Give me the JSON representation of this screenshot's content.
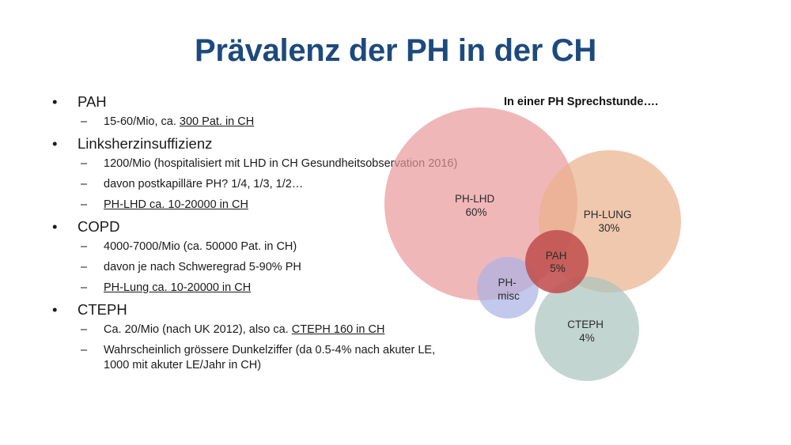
{
  "title": "Prävalenz der PH in der CH",
  "bullets": [
    {
      "label": "PAH",
      "subs": [
        {
          "pre": "15-60/Mio, ca. ",
          "link": "300 Pat. in CH",
          "post": ""
        }
      ]
    },
    {
      "label": "Linksherzinsuffizienz",
      "subs": [
        {
          "pre": "1200/Mio (hospitalisiert mit LHD in CH Gesundheitsobservation 2016)",
          "link": "",
          "post": ""
        },
        {
          "pre": "davon postkapilläre PH? 1/4, 1/3, 1/2…",
          "link": "",
          "post": ""
        },
        {
          "pre": "",
          "link": "PH-LHD ca. 10-20000 in CH",
          "post": ""
        }
      ]
    },
    {
      "label": "COPD",
      "subs": [
        {
          "pre": "4000-7000/Mio (ca. 50000 Pat. in CH)",
          "link": "",
          "post": ""
        },
        {
          "pre": "davon je nach Schweregrad 5-90% PH",
          "link": "",
          "post": ""
        },
        {
          "pre": "",
          "link": "PH-Lung ca. 10-20000 in CH",
          "post": ""
        }
      ]
    },
    {
      "label": "CTEPH",
      "subs": [
        {
          "pre": "Ca. 20/Mio (nach UK 2012), also ca. ",
          "link": "CTEPH 160 in CH",
          "post": ""
        },
        {
          "pre": "Wahrscheinlich grössere Dunkelziffer  (da 0.5-4% nach akuter LE, 1000 mit akuter LE/Jahr in CH)",
          "link": "",
          "post": ""
        }
      ]
    }
  ],
  "diagram": {
    "title": "In einer PH Sprechstunde….",
    "circles": [
      {
        "name": "ph-lhd",
        "line1": "PH-LHD",
        "line2": "60%",
        "value": 60,
        "color": "#e9999b"
      },
      {
        "name": "ph-lung",
        "line1": "PH-LUNG",
        "line2": "30%",
        "value": 30,
        "color": "#eab08c"
      },
      {
        "name": "cteph",
        "line1": "CTEPH",
        "line2": "4%",
        "value": 4,
        "color": "#aac3bc"
      },
      {
        "name": "ph-misc",
        "line1": "PH-",
        "line2": "misc",
        "value": null,
        "color": "#a9b2e6"
      },
      {
        "name": "pah",
        "line1": "PAH",
        "line2": "5%",
        "value": 5,
        "color": "#c0504f"
      }
    ]
  }
}
